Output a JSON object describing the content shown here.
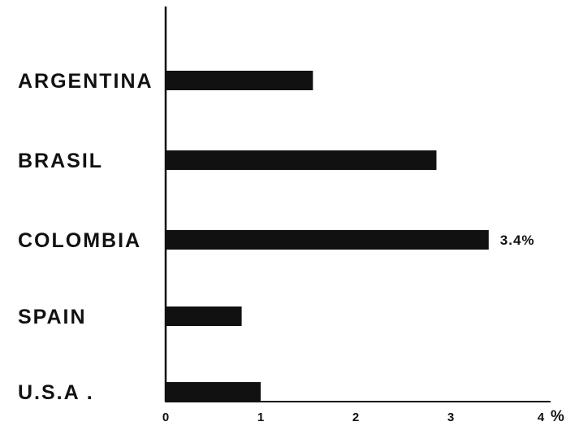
{
  "chart_data": {
    "type": "bar",
    "orientation": "horizontal",
    "categories": [
      "ARGENTINA",
      "BRASIL",
      "COLOMBIA",
      "SPAIN",
      "U.S.A ."
    ],
    "values": [
      1.55,
      2.85,
      3.4,
      0.8,
      1.0
    ],
    "xlim": [
      0,
      4
    ],
    "x_ticks": [
      "0",
      "1",
      "2",
      "3",
      "4"
    ],
    "x_unit": "%",
    "data_labels": [
      {
        "category": "COLOMBIA",
        "text": "3.4%"
      }
    ],
    "grid": false,
    "legend": "none",
    "bar_color": "#111111"
  }
}
